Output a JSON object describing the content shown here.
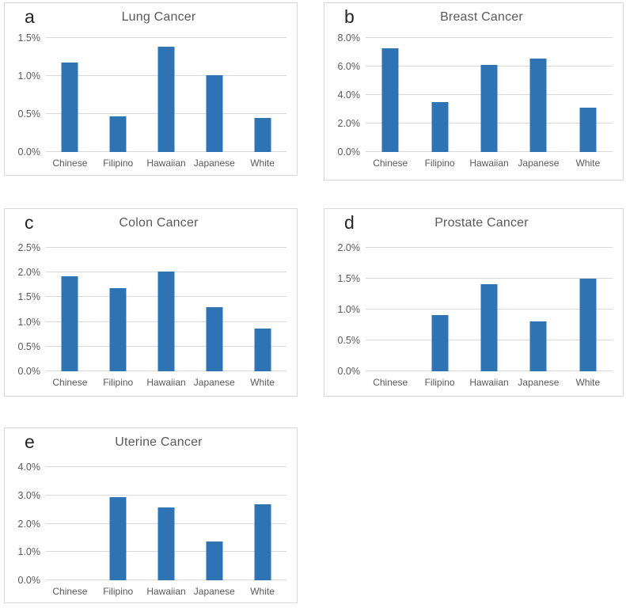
{
  "figure": {
    "bar_color": "#2e74b5",
    "gridline_color": "#d9d9d9",
    "panel_border_color": "#d8d8d8",
    "axis_text_color": "#595959",
    "title_text_color": "#595959",
    "letter_text_color": "#262626"
  },
  "chart_data": [
    {
      "type": "bar",
      "panel_letter": "a",
      "title": "Lung Cancer",
      "categories": [
        "Chinese",
        "Filipino",
        "Hawaiian",
        "Japanese",
        "White"
      ],
      "values": [
        1.18,
        0.47,
        1.39,
        1.01,
        0.45
      ],
      "unit": "%",
      "ylim": [
        0,
        1.5
      ],
      "yticks": [
        0,
        0.5,
        1.0,
        1.5
      ],
      "ytick_labels": [
        "0.0%",
        "0.5%",
        "1.0%",
        "1.5%"
      ],
      "xlabel": "",
      "ylabel": "",
      "grid": true,
      "legend_position": "none"
    },
    {
      "type": "bar",
      "panel_letter": "b",
      "title": "Breast Cancer",
      "categories": [
        "Chinese",
        "Filipino",
        "Hawaiian",
        "Japanese",
        "White"
      ],
      "values": [
        7.3,
        3.5,
        6.1,
        6.55,
        3.1
      ],
      "unit": "%",
      "ylim": [
        0,
        8
      ],
      "yticks": [
        0,
        2,
        4,
        6,
        8
      ],
      "ytick_labels": [
        "0.0%",
        "2.0%",
        "4.0%",
        "6.0%",
        "8.0%"
      ],
      "xlabel": "",
      "ylabel": "",
      "grid": true,
      "legend_position": "none"
    },
    {
      "type": "bar",
      "panel_letter": "c",
      "title": "Colon Cancer",
      "categories": [
        "Chinese",
        "Filipino",
        "Hawaiian",
        "Japanese",
        "White"
      ],
      "values": [
        1.93,
        1.68,
        2.02,
        1.3,
        0.86
      ],
      "unit": "%",
      "ylim": [
        0,
        2.5
      ],
      "yticks": [
        0,
        0.5,
        1.0,
        1.5,
        2.0,
        2.5
      ],
      "ytick_labels": [
        "0.0%",
        "0.5%",
        "1.0%",
        "1.5%",
        "2.0%",
        "2.5%"
      ],
      "xlabel": "",
      "ylabel": "",
      "grid": true,
      "legend_position": "none"
    },
    {
      "type": "bar",
      "panel_letter": "d",
      "title": "Prostate Cancer",
      "categories": [
        "Chinese",
        "Filipino",
        "Hawaiian",
        "Japanese",
        "White"
      ],
      "values": [
        0,
        0.91,
        1.41,
        0.81,
        1.5
      ],
      "unit": "%",
      "ylim": [
        0,
        2
      ],
      "yticks": [
        0,
        0.5,
        1.0,
        1.5,
        2.0
      ],
      "ytick_labels": [
        "0.0%",
        "0.5%",
        "1.0%",
        "1.5%",
        "2.0%"
      ],
      "xlabel": "",
      "ylabel": "",
      "grid": true,
      "legend_position": "none"
    },
    {
      "type": "bar",
      "panel_letter": "e",
      "title": "Uterine Cancer",
      "categories": [
        "Chinese",
        "Filipino",
        "Hawaiian",
        "Japanese",
        "White"
      ],
      "values": [
        0,
        2.95,
        2.57,
        1.38,
        2.68
      ],
      "unit": "%",
      "ylim": [
        0,
        4
      ],
      "yticks": [
        0,
        1,
        2,
        3,
        4
      ],
      "ytick_labels": [
        "0.0%",
        "1.0%",
        "2.0%",
        "3.0%",
        "4.0%"
      ],
      "xlabel": "",
      "ylabel": "",
      "grid": true,
      "legend_position": "none"
    }
  ]
}
